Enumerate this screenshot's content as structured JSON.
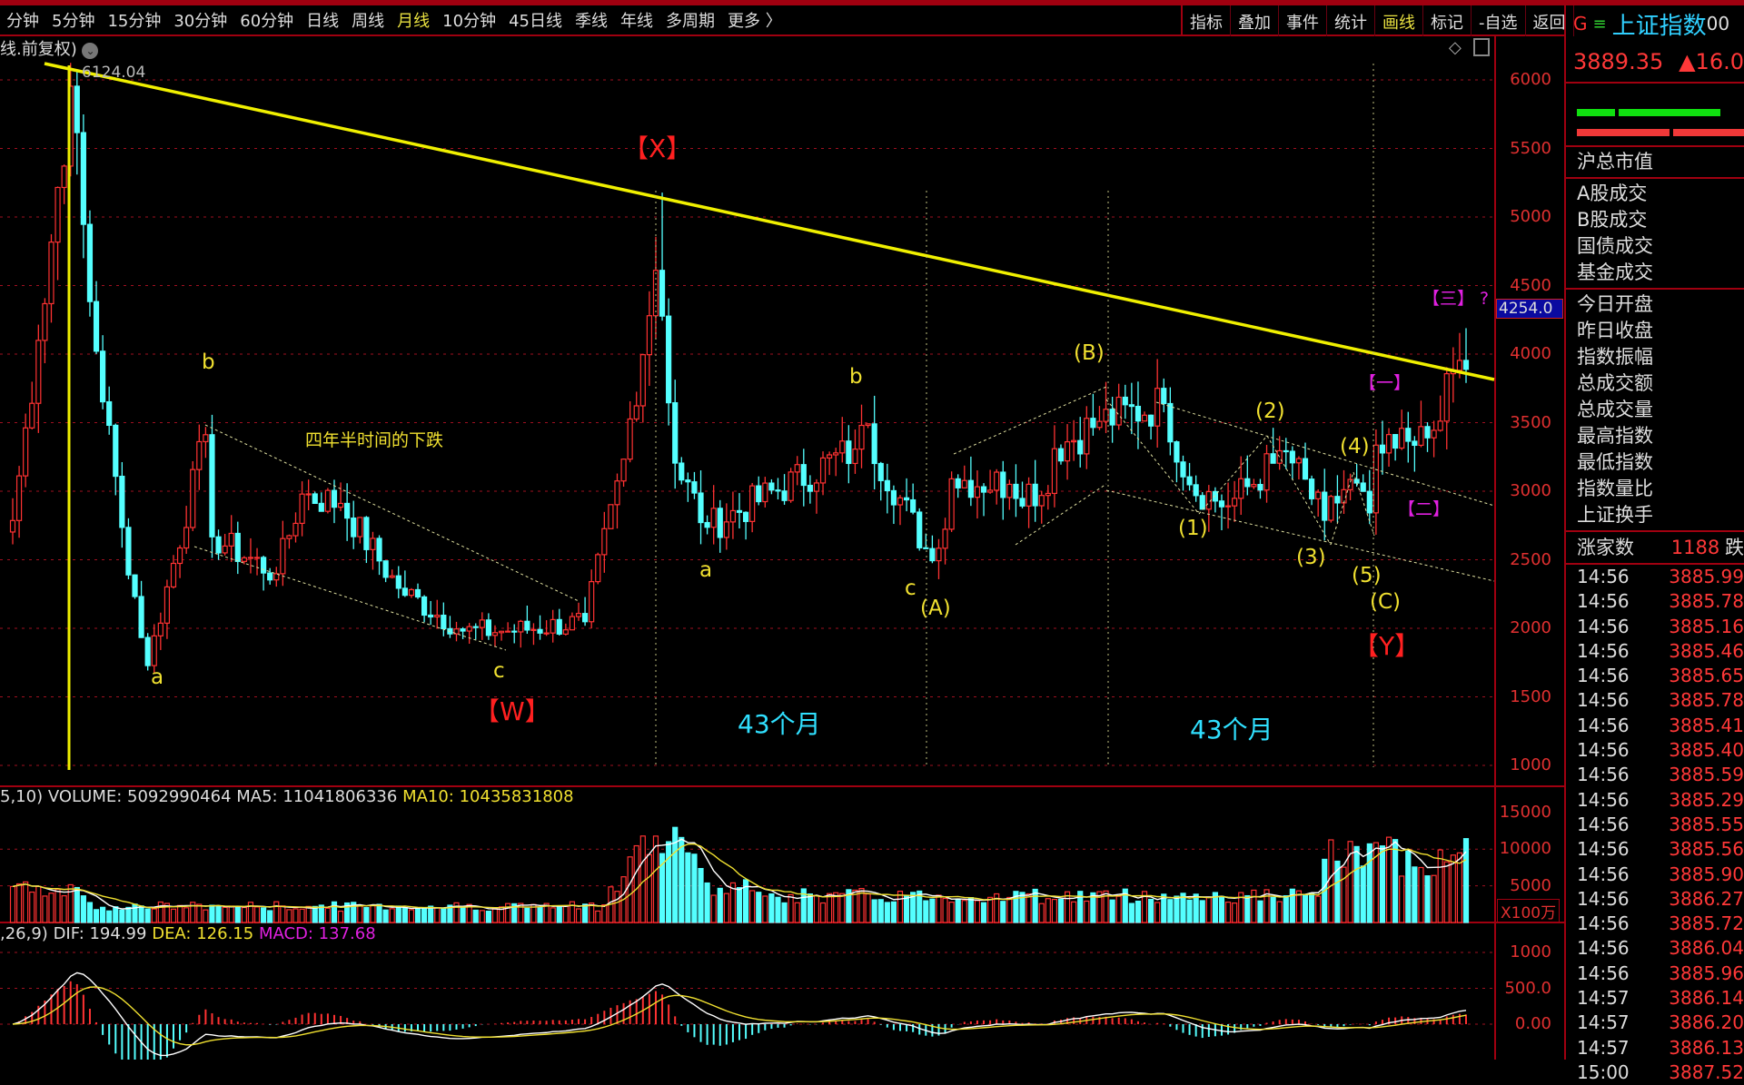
{
  "menu": {
    "periods": [
      {
        "label": "分钟"
      },
      {
        "label": "5分钟"
      },
      {
        "label": "15分钟"
      },
      {
        "label": "30分钟"
      },
      {
        "label": "60分钟"
      },
      {
        "label": "日线"
      },
      {
        "label": "周线"
      },
      {
        "label": "月线",
        "active": true
      },
      {
        "label": "10分钟"
      },
      {
        "label": "45日线"
      },
      {
        "label": "季线"
      },
      {
        "label": "年线"
      },
      {
        "label": "多周期"
      },
      {
        "label": "更多 〉"
      }
    ],
    "tools": [
      {
        "label": "指标"
      },
      {
        "label": "叠加"
      },
      {
        "label": "事件"
      },
      {
        "label": "统计"
      },
      {
        "label": "画线",
        "active": true
      },
      {
        "label": "标记"
      },
      {
        "label": "-自选"
      },
      {
        "label": "返回"
      }
    ]
  },
  "chart_header": {
    "mode": "线.前复权)",
    "high_label": "6124.04",
    "cursor_price": "4254.0"
  },
  "annotations": {
    "b1": "b",
    "a1": "a",
    "decline": "四年半时间的下跌",
    "c1": "c",
    "W": "【W】",
    "X": "【X】",
    "a2": "a",
    "months1": "43个月",
    "b2": "b",
    "c2": "c",
    "A": "(A)",
    "B": "(B)",
    "w1": "(1)",
    "w2": "(2)",
    "w3": "(3)",
    "w4": "(4)",
    "w5": "(5)",
    "C": "(C)",
    "Y": "【Y】",
    "months2": "43个月",
    "one": "【一】",
    "two": "【二】",
    "three": "【三】 ?"
  },
  "colors": {
    "up": "#ff3232",
    "down": "#54ffff",
    "trendline": "#f0f000",
    "grid": "#a00010",
    "ma5": "#ffffff",
    "ma10": "#f0e030",
    "macd": "#e020e0"
  },
  "chart_data": {
    "type": "candlestick",
    "period": "monthly",
    "price_axis": [
      1000,
      1500,
      2000,
      2500,
      3000,
      3500,
      4000,
      4500,
      5000,
      5500,
      6000
    ],
    "waypoints": [
      [
        "2007-01",
        2786
      ],
      [
        "2007-05",
        4100
      ],
      [
        "2007-10",
        5954
      ],
      [
        "2008-01",
        4383
      ],
      [
        "2008-06",
        2736
      ],
      [
        "2008-10",
        1728
      ],
      [
        "2009-07",
        3412
      ],
      [
        "2009-08",
        2667
      ],
      [
        "2010-06",
        2398
      ],
      [
        "2010-10",
        2979
      ],
      [
        "2011-04",
        2911
      ],
      [
        "2012-01",
        2292
      ],
      [
        "2012-11",
        1980
      ],
      [
        "2013-06",
        1979
      ],
      [
        "2014-06",
        2048
      ],
      [
        "2014-12",
        3234
      ],
      [
        "2015-05",
        4611
      ],
      [
        "2015-06",
        4277
      ],
      [
        "2015-08",
        3205
      ],
      [
        "2016-01",
        2737
      ],
      [
        "2017-12",
        3307
      ],
      [
        "2018-01",
        3480
      ],
      [
        "2018-12",
        2493
      ],
      [
        "2019-01",
        2584
      ],
      [
        "2019-03",
        3090
      ],
      [
        "2019-12",
        3050
      ],
      [
        "2020-06",
        2984
      ],
      [
        "2020-07",
        3310
      ],
      [
        "2021-02",
        3509
      ],
      [
        "2021-12",
        3639
      ],
      [
        "2022-04",
        3047
      ],
      [
        "2022-10",
        2893
      ],
      [
        "2023-05",
        3204
      ],
      [
        "2023-07",
        3291
      ],
      [
        "2024-01",
        2788
      ],
      [
        "2024-05",
        3086
      ],
      [
        "2024-08",
        2842
      ],
      [
        "2024-09",
        3336
      ],
      [
        "2024-10",
        3279
      ],
      [
        "2025-03",
        3335
      ],
      [
        "2025-06",
        3444
      ],
      [
        "2025-08",
        3857
      ],
      [
        "2025-09",
        3882
      ],
      [
        "2025-10",
        3954
      ],
      [
        "2025-11",
        3889
      ]
    ],
    "peak": 6124.04,
    "trendline": "6124 (2007-10) to 5178 (2015-06) extended",
    "volume": {
      "header_prefix": "5,10)",
      "volume": "VOLUME: 5092990464",
      "ma5": "MA5: 11041806336",
      "ma10": "MA10: 10435831808",
      "axis": [
        "15000",
        "10000",
        "5000"
      ],
      "unit": "X100万"
    },
    "macd": {
      "header_prefix": ",26,9)",
      "dif": "DIF: 194.99",
      "dea": "DEA: 126.15",
      "macd": "MACD: 137.68",
      "axis": [
        "1000",
        "500.0",
        "0.00"
      ]
    }
  },
  "panel": {
    "flag": "G",
    "menu_icon": "≡",
    "name": "上证指数",
    "code": "00",
    "price": "3889.35",
    "change": "▲16.0",
    "group1": [
      "沪总市值"
    ],
    "group2": [
      "A股成交",
      "B股成交",
      "国债成交",
      "基金成交"
    ],
    "group3": [
      "今日开盘",
      "昨日收盘",
      "指数振幅",
      "总成交额",
      "总成交量",
      "最高指数",
      "最低指数",
      "指数量比",
      "上证换手"
    ],
    "up_count_label": "涨家数",
    "up_count": "1188",
    "down_label": "跌",
    "ticks": [
      {
        "t": "14:56",
        "v": "3885.99"
      },
      {
        "t": "14:56",
        "v": "3885.78"
      },
      {
        "t": "14:56",
        "v": "3885.16"
      },
      {
        "t": "14:56",
        "v": "3885.46"
      },
      {
        "t": "14:56",
        "v": "3885.65"
      },
      {
        "t": "14:56",
        "v": "3885.78"
      },
      {
        "t": "14:56",
        "v": "3885.41"
      },
      {
        "t": "14:56",
        "v": "3885.40"
      },
      {
        "t": "14:56",
        "v": "3885.59"
      },
      {
        "t": "14:56",
        "v": "3885.29"
      },
      {
        "t": "14:56",
        "v": "3885.55"
      },
      {
        "t": "14:56",
        "v": "3885.56"
      },
      {
        "t": "14:56",
        "v": "3885.90"
      },
      {
        "t": "14:56",
        "v": "3886.27"
      },
      {
        "t": "14:56",
        "v": "3885.72"
      },
      {
        "t": "14:56",
        "v": "3886.04"
      },
      {
        "t": "14:56",
        "v": "3885.96"
      },
      {
        "t": "14:57",
        "v": "3886.14"
      },
      {
        "t": "14:57",
        "v": "3886.20"
      },
      {
        "t": "14:57",
        "v": "3886.13"
      },
      {
        "t": "15:00",
        "v": "3887.52"
      }
    ]
  }
}
